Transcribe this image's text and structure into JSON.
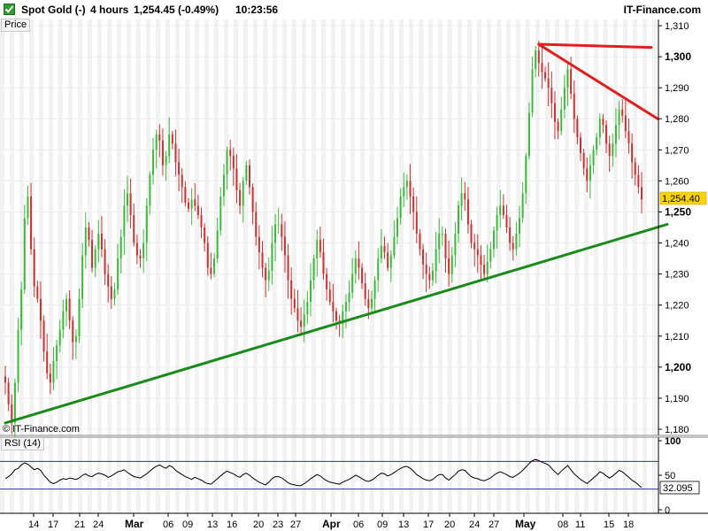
{
  "header": {
    "instrument": "Spot Gold (-)",
    "timeframe": "4 hours",
    "last_change": "1,254.45 (-0.49%)",
    "time": "10:23:56",
    "brand": "IT-Finance.com"
  },
  "panels": {
    "price_label": "Price",
    "rsi_label": "RSI (14)",
    "copyright": "© IT-Finance.com"
  },
  "colors": {
    "up": "#3cb83c",
    "down": "#c83232",
    "support_line": "#1a8a1a",
    "resistance_line": "#e01e1e",
    "rsi_line": "#000000",
    "rsi_bands": "#2c2cb4",
    "current_price_tag": "#ffd200"
  },
  "chart_data": [
    {
      "type": "line",
      "title": "Spot Gold (-)",
      "y_ticks": [
        "1,180",
        "1,190",
        "1,200",
        "1,210",
        "1,220",
        "1,230",
        "1,240",
        "1,250",
        "1,260",
        "1,270",
        "1,280",
        "1,290",
        "1,300",
        "1,310"
      ],
      "y_ticks_bold": [
        "1,200",
        "1,250",
        "1,300"
      ],
      "ylim": [
        1178,
        1312
      ],
      "x_ticks": [
        "14",
        "17",
        "21",
        "24",
        "Mar",
        "06",
        "09",
        "13",
        "16",
        "20",
        "23",
        "27",
        "Apr",
        "06",
        "09",
        "13",
        "17",
        "20",
        "24",
        "27",
        "May",
        "08",
        "11",
        "15",
        "18"
      ],
      "x_ticks_bold": [
        "Mar",
        "Apr",
        "May"
      ],
      "current_price": "1,254.40",
      "series": [
        {
          "values": [
            1195,
            1188,
            1182,
            1195,
            1212,
            1225,
            1248,
            1255,
            1238,
            1226,
            1222,
            1215,
            1205,
            1198,
            1195,
            1202,
            1207,
            1212,
            1218,
            1222,
            1215,
            1208,
            1210,
            1222,
            1236,
            1245,
            1241,
            1232,
            1238,
            1243,
            1238,
            1230,
            1226,
            1222,
            1225,
            1235,
            1242,
            1252,
            1256,
            1249,
            1240,
            1236,
            1235,
            1240,
            1252,
            1262,
            1270,
            1275,
            1273,
            1265,
            1268,
            1275,
            1272,
            1266,
            1262,
            1258,
            1253,
            1251,
            1254,
            1252,
            1249,
            1245,
            1240,
            1232,
            1230,
            1235,
            1244,
            1255,
            1262,
            1270,
            1268,
            1264,
            1257,
            1252,
            1260,
            1265,
            1258,
            1250,
            1242,
            1237,
            1232,
            1228,
            1231,
            1240,
            1246,
            1246,
            1242,
            1236,
            1228,
            1222,
            1219,
            1215,
            1213,
            1217,
            1221,
            1228,
            1235,
            1241,
            1237,
            1230,
            1225,
            1221,
            1218,
            1215,
            1214,
            1218,
            1221,
            1224,
            1230,
            1235,
            1232,
            1227,
            1222,
            1219,
            1222,
            1228,
            1235,
            1239,
            1237,
            1232,
            1236,
            1242,
            1248,
            1255,
            1258,
            1260,
            1255,
            1250,
            1243,
            1238,
            1233,
            1230,
            1228,
            1231,
            1238,
            1243,
            1243,
            1235,
            1230,
            1236,
            1243,
            1252,
            1256,
            1254,
            1246,
            1240,
            1238,
            1236,
            1233,
            1230,
            1234,
            1238,
            1244,
            1249,
            1252,
            1249,
            1245,
            1240,
            1238,
            1243,
            1248,
            1256,
            1268,
            1282,
            1296,
            1302,
            1298,
            1295,
            1293,
            1290,
            1285,
            1279,
            1276,
            1283,
            1290,
            1296,
            1288,
            1280,
            1274,
            1269,
            1264,
            1260,
            1265,
            1270,
            1274,
            1280,
            1278,
            1272,
            1268,
            1272,
            1278,
            1283,
            1281,
            1276,
            1272,
            1266,
            1262,
            1258,
            1254
          ]
        }
      ],
      "annotations": [
        {
          "name": "support-trendline",
          "from": [
            0,
            1182
          ],
          "to": [
            206,
            1246
          ],
          "color": "#1a8a1a"
        },
        {
          "name": "resistance-horizontal",
          "from": [
            166,
            1304
          ],
          "to": [
            201,
            1303
          ],
          "color": "#e01e1e"
        },
        {
          "name": "resistance-descending",
          "from": [
            166,
            1304
          ],
          "to": [
            203,
            1280
          ],
          "color": "#e01e1e"
        }
      ]
    },
    {
      "type": "line",
      "title": "RSI (14)",
      "ylim": [
        0,
        100
      ],
      "y_ticks": [
        "100",
        "50",
        "0"
      ],
      "bands": [
        70,
        30
      ],
      "current_value": "32.095",
      "series": [
        {
          "values": [
            45,
            48,
            52,
            58,
            60,
            65,
            68,
            66,
            62,
            58,
            60,
            57,
            50,
            45,
            40,
            38,
            40,
            43,
            45,
            44,
            46,
            45,
            44,
            46,
            50,
            52,
            49,
            48,
            51,
            53,
            52,
            50,
            47,
            49,
            52,
            55,
            56,
            58,
            54,
            51,
            48,
            47,
            46,
            49,
            52,
            56,
            60,
            63,
            65,
            62,
            60,
            64,
            62,
            57,
            54,
            51,
            48,
            46,
            44,
            47,
            45,
            43,
            40,
            38,
            37,
            41,
            45,
            49,
            53,
            56,
            54,
            52,
            49,
            47,
            51,
            53,
            50,
            46,
            43,
            40,
            38,
            36,
            40,
            45,
            48,
            48,
            46,
            43,
            39,
            37,
            36,
            35,
            35,
            38,
            41,
            45,
            48,
            51,
            49,
            45,
            42,
            40,
            39,
            38,
            37,
            40,
            42,
            44,
            47,
            50,
            48,
            45,
            42,
            41,
            43,
            46,
            50,
            53,
            52,
            49,
            51,
            54,
            57,
            60,
            62,
            63,
            60,
            56,
            51,
            48,
            45,
            43,
            42,
            44,
            48,
            51,
            51,
            46,
            43,
            47,
            51,
            56,
            58,
            57,
            52,
            48,
            46,
            45,
            43,
            42,
            44,
            46,
            50,
            53,
            55,
            53,
            51,
            48,
            47,
            50,
            53,
            57,
            62,
            67,
            71,
            73,
            71,
            69,
            67,
            65,
            60,
            55,
            51,
            56,
            60,
            64,
            58,
            52,
            48,
            44,
            41,
            38,
            42,
            46,
            50,
            55,
            53,
            49,
            46,
            49,
            53,
            57,
            55,
            51,
            47,
            43,
            40,
            36,
            32
          ]
        }
      ]
    }
  ]
}
